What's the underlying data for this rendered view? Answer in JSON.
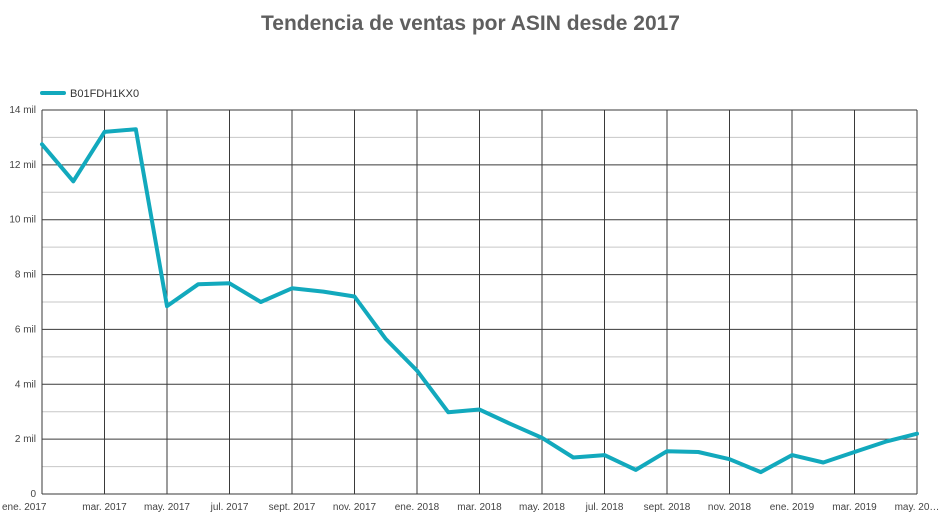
{
  "chart_data": {
    "type": "line",
    "title": "Tendencia de ventas por ASIN desde 2017",
    "xlabel": "",
    "ylabel": "",
    "ylim": [
      0,
      14000
    ],
    "y_ticks": [
      {
        "value": 0,
        "label": "0"
      },
      {
        "value": 2000,
        "label": "2 mil"
      },
      {
        "value": 4000,
        "label": "4 mil"
      },
      {
        "value": 6000,
        "label": "6 mil"
      },
      {
        "value": 8000,
        "label": "8 mil"
      },
      {
        "value": 10000,
        "label": "10 mil"
      },
      {
        "value": 12000,
        "label": "12 mil"
      },
      {
        "value": 14000,
        "label": "14 mil"
      }
    ],
    "x": [
      "2017-01",
      "2017-02",
      "2017-03",
      "2017-04",
      "2017-05",
      "2017-06",
      "2017-07",
      "2017-08",
      "2017-09",
      "2017-10",
      "2017-11",
      "2017-12",
      "2018-01",
      "2018-02",
      "2018-03",
      "2018-04",
      "2018-05",
      "2018-06",
      "2018-07",
      "2018-08",
      "2018-09",
      "2018-10",
      "2018-11",
      "2018-12",
      "2019-01",
      "2019-02",
      "2019-03",
      "2019-04",
      "2019-05"
    ],
    "x_tick_labels": [
      {
        "x": "2017-01",
        "label": "ene. 2017"
      },
      {
        "x": "2017-03",
        "label": "mar. 2017"
      },
      {
        "x": "2017-05",
        "label": "may. 2017"
      },
      {
        "x": "2017-07",
        "label": "jul. 2017"
      },
      {
        "x": "2017-09",
        "label": "sept. 2017"
      },
      {
        "x": "2017-11",
        "label": "nov. 2017"
      },
      {
        "x": "2018-01",
        "label": "ene. 2018"
      },
      {
        "x": "2018-03",
        "label": "mar. 2018"
      },
      {
        "x": "2018-05",
        "label": "may. 2018"
      },
      {
        "x": "2018-07",
        "label": "jul. 2018"
      },
      {
        "x": "2018-09",
        "label": "sept. 2018"
      },
      {
        "x": "2018-11",
        "label": "nov. 2018"
      },
      {
        "x": "2019-01",
        "label": "ene. 2019"
      },
      {
        "x": "2019-03",
        "label": "mar. 2019"
      },
      {
        "x": "2019-05",
        "label": "may. 20…"
      }
    ],
    "series": [
      {
        "name": "B01FDH1KX0",
        "color": "#12a9bd",
        "values": [
          12750,
          11400,
          13200,
          13300,
          6850,
          7650,
          7680,
          7000,
          7500,
          7380,
          7200,
          5650,
          4500,
          2980,
          3080,
          2550,
          2050,
          1330,
          1420,
          880,
          1560,
          1530,
          1270,
          800,
          1420,
          1150,
          1530,
          1910,
          2200
        ]
      }
    ],
    "legend_position": "top-left",
    "grid": true
  }
}
